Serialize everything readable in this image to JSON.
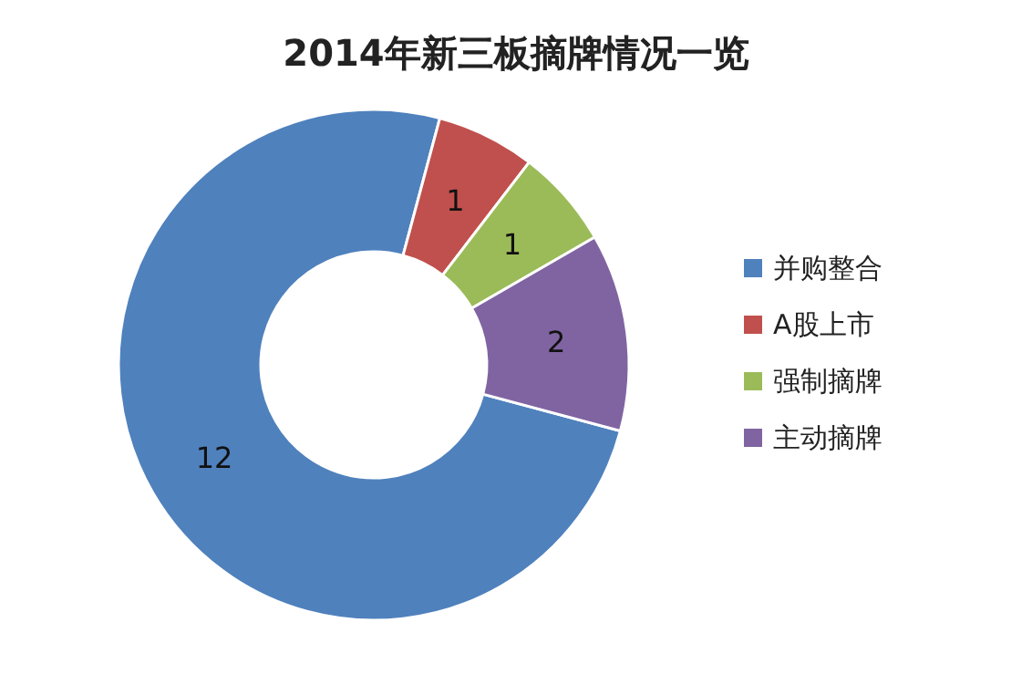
{
  "chart_data": {
    "type": "donut",
    "title": "2014年新三板摘牌情况一览",
    "categories": [
      "并购整合",
      "A股上市",
      "强制摘牌",
      "主动摘牌"
    ],
    "values": [
      12,
      1,
      1,
      2
    ],
    "colors": [
      "#4f81bd",
      "#c0504d",
      "#9bbb59",
      "#8064a2"
    ],
    "data_labels": true,
    "legend": "right"
  }
}
